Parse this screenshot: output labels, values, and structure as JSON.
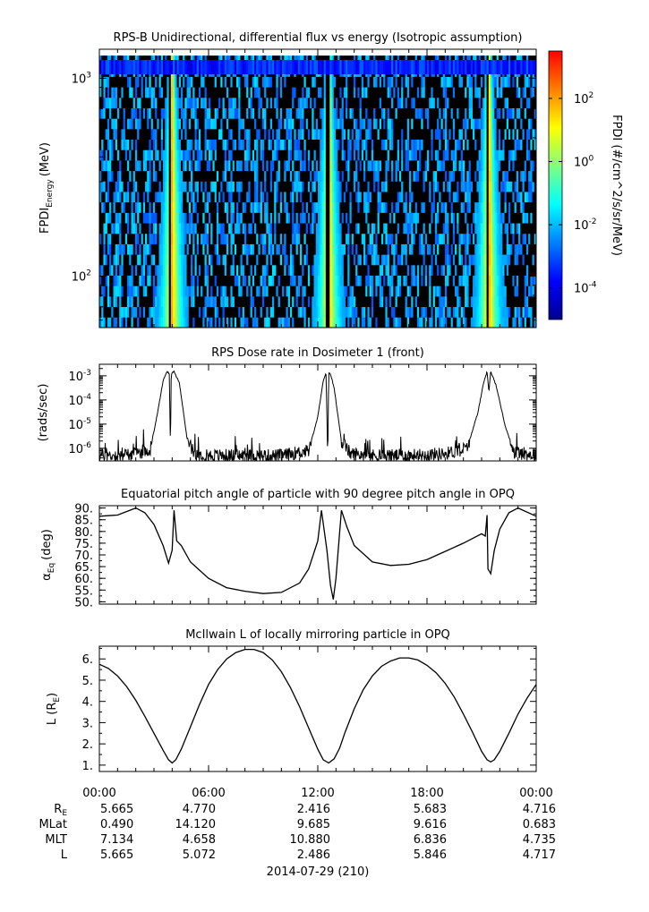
{
  "chart_data": [
    {
      "type": "heatmap",
      "title": "RPS-B  Unidirectional, differential flux vs energy (Isotropic assumption)",
      "ylabel_main": "FPDI",
      "ylabel_sub": "Energy",
      "ylabel_unit": "(MeV)",
      "y_scale": "log",
      "ylim": [
        55,
        1400
      ],
      "yticks": [
        {
          "value": 100,
          "base": "10",
          "exp": "2"
        },
        {
          "value": 1000,
          "base": "10",
          "exp": "3"
        }
      ],
      "energy_bins": 26,
      "time_bins": 220,
      "colorbar": {
        "label": "FPDI (#/cm^2/s/sr/MeV)",
        "scale": "log",
        "range_exp": [
          -5,
          3.5
        ],
        "ticks": [
          {
            "value": 0.0001,
            "base": "10",
            "exp": "-4"
          },
          {
            "value": 0.01,
            "base": "10",
            "exp": "-2"
          },
          {
            "value": 1,
            "base": "10",
            "exp": "0"
          },
          {
            "value": 100,
            "base": "10",
            "exp": "2"
          }
        ],
        "colors": [
          "#00008f",
          "#0000ff",
          "#007fff",
          "#00ffff",
          "#7fff7f",
          "#ffff00",
          "#ff7f00",
          "#ff0000"
        ]
      },
      "belt_passes": [
        {
          "center_hour": 4.0,
          "notch_hour": 3.9
        },
        {
          "center_hour": 12.6,
          "notch_hour": 12.55
        },
        {
          "center_hour": 21.4,
          "notch_hour": 21.3
        }
      ]
    },
    {
      "type": "line",
      "title": "RPS  Dose rate in Dosimeter 1 (front)",
      "ylabel": "(rads/sec)",
      "y_scale": "log",
      "ylim": [
        3e-07,
        0.003
      ],
      "yticks": [
        {
          "value": 1e-06,
          "base": "10",
          "exp": "-6"
        },
        {
          "value": 1e-05,
          "base": "10",
          "exp": "-5"
        },
        {
          "value": 0.0001,
          "base": "10",
          "exp": "-4"
        },
        {
          "value": 0.001,
          "base": "10",
          "exp": "-3"
        }
      ],
      "x_hours": [
        0,
        1,
        2,
        2.8,
        3.2,
        3.5,
        3.7,
        3.85,
        3.9,
        3.95,
        4.1,
        4.4,
        4.8,
        5.2,
        6,
        8,
        10,
        11.5,
        12.0,
        12.3,
        12.45,
        12.55,
        12.6,
        12.7,
        12.9,
        13.3,
        13.8,
        15,
        17,
        19,
        20.2,
        20.8,
        21.1,
        21.3,
        21.4,
        21.5,
        21.8,
        22.3,
        22.8,
        24
      ],
      "values": [
        5e-07,
        5e-07,
        6e-07,
        9e-07,
        3e-05,
        0.0006,
        0.0015,
        0.0012,
        4e-07,
        0.0012,
        0.0015,
        0.0005,
        3e-06,
        6e-07,
        5e-07,
        5e-07,
        5e-07,
        8e-07,
        2e-05,
        0.0006,
        0.0014,
        4e-07,
        0.0014,
        0.0012,
        0.0003,
        2e-06,
        6e-07,
        5e-07,
        5e-07,
        6e-07,
        1e-06,
        3e-05,
        0.0005,
        0.0015,
        0.0002,
        0.0015,
        0.0004,
        8e-06,
        7e-07,
        5e-07
      ]
    },
    {
      "type": "line",
      "title": "Equatorial pitch angle of particle with 90 degree pitch angle in OPQ",
      "ylabel_main": "α",
      "ylabel_sub": "Eq",
      "ylabel_unit": "(deg)",
      "ylim": [
        49,
        91
      ],
      "yticks": [
        "50.",
        "55.",
        "60.",
        "65.",
        "70.",
        "75.",
        "80.",
        "85.",
        "90."
      ],
      "x_hours": [
        0,
        1,
        2,
        2.5,
        3,
        3.5,
        3.8,
        4.0,
        4.1,
        4.25,
        4.5,
        5,
        6,
        7,
        8,
        9,
        10,
        11,
        11.5,
        12,
        12.2,
        12.5,
        12.7,
        12.85,
        13,
        13.3,
        13.6,
        14,
        15,
        16,
        17,
        18,
        19,
        20,
        20.5,
        21,
        21.2,
        21.3,
        21.35,
        21.5,
        21.7,
        22,
        22.5,
        23,
        24
      ],
      "values": [
        86.5,
        87,
        90,
        88,
        83,
        74,
        66.5,
        72,
        89,
        76,
        74,
        67,
        60,
        56,
        54.5,
        53.5,
        54,
        58,
        64,
        76,
        89,
        72,
        57,
        51,
        60,
        89,
        82,
        74,
        67,
        65.5,
        66,
        68,
        71.5,
        75,
        77,
        79,
        78,
        87,
        64,
        62,
        72,
        81,
        88,
        90,
        86.5
      ]
    },
    {
      "type": "line",
      "title": "McIlwain L of locally mirroring particle in OPQ",
      "ylabel_main": "L (R",
      "ylabel_sub": "E",
      "ylabel_end": ")",
      "ylim": [
        0.7,
        6.6
      ],
      "yticks": [
        "1.",
        "2.",
        "3.",
        "4.",
        "5.",
        "6."
      ],
      "x_hours": [
        0,
        0.5,
        1,
        1.5,
        2,
        2.5,
        3,
        3.5,
        3.8,
        4.0,
        4.2,
        4.5,
        5,
        5.5,
        6,
        6.5,
        7,
        7.5,
        8,
        8.5,
        9,
        9.5,
        10,
        10.5,
        11,
        11.5,
        12,
        12.3,
        12.6,
        12.9,
        13.2,
        13.5,
        14,
        14.5,
        15,
        15.5,
        16,
        16.5,
        17,
        17.5,
        18,
        18.5,
        19,
        19.5,
        20,
        20.5,
        21,
        21.3,
        21.5,
        21.7,
        22,
        22.5,
        23,
        23.5,
        24
      ],
      "values": [
        5.75,
        5.55,
        5.2,
        4.7,
        4.05,
        3.3,
        2.5,
        1.7,
        1.25,
        1.1,
        1.25,
        1.75,
        2.8,
        3.85,
        4.8,
        5.5,
        6.0,
        6.3,
        6.45,
        6.45,
        6.3,
        5.95,
        5.4,
        4.65,
        3.75,
        2.75,
        1.75,
        1.25,
        1.1,
        1.3,
        1.8,
        2.55,
        3.65,
        4.55,
        5.2,
        5.65,
        5.9,
        6.05,
        6.05,
        5.95,
        5.7,
        5.35,
        4.85,
        4.2,
        3.4,
        2.55,
        1.65,
        1.25,
        1.15,
        1.25,
        1.65,
        2.5,
        3.4,
        4.15,
        4.8
      ]
    }
  ],
  "x_axis": {
    "ticks": [
      "00:00",
      "06:00",
      "12:00",
      "18:00",
      "00:00"
    ],
    "xlim_hours": [
      0,
      24
    ],
    "date_label": "2014-07-29 (210)"
  },
  "ephemeris": [
    {
      "label": "R",
      "sub": "E",
      "values": [
        "5.665",
        "4.770",
        "2.416",
        "5.683",
        "4.716"
      ]
    },
    {
      "label": "MLat",
      "sub": "",
      "values": [
        "0.490",
        "14.120",
        "9.685",
        "9.616",
        "0.683"
      ]
    },
    {
      "label": "MLT",
      "sub": "",
      "values": [
        "7.134",
        "4.658",
        "10.880",
        "6.836",
        "4.735"
      ]
    },
    {
      "label": "L",
      "sub": "",
      "values": [
        "5.665",
        "5.072",
        "2.486",
        "5.846",
        "4.717"
      ]
    }
  ]
}
